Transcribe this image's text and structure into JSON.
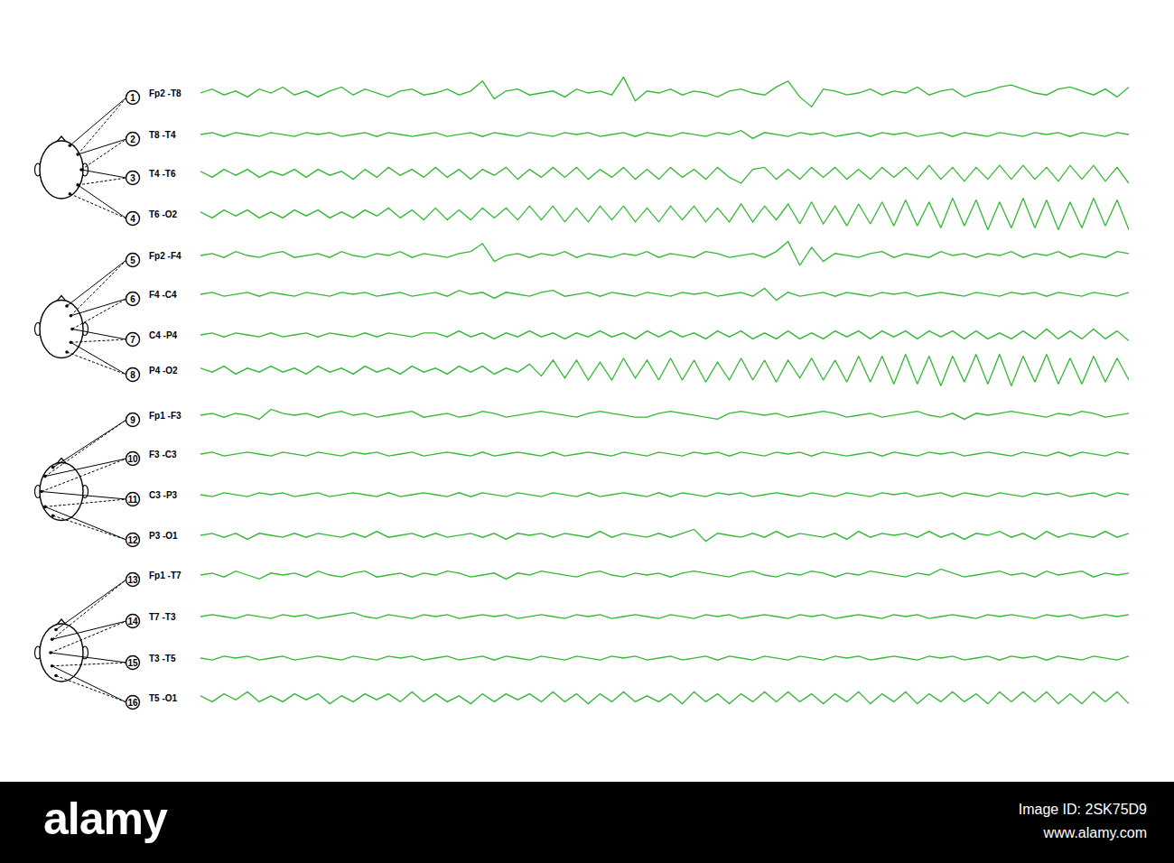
{
  "chart_data": {
    "type": "line",
    "color": "#33b833",
    "ylim": [
      -10,
      10
    ],
    "grid": false,
    "tick_labels": false,
    "series": [
      {
        "name": "Fp2 -T8",
        "number": 1,
        "values": [
          0,
          2,
          -1,
          1,
          -2,
          2,
          0,
          3,
          -1,
          1,
          -2,
          1,
          3,
          -1,
          2,
          0,
          -2,
          1,
          2,
          -1,
          0,
          2,
          -1,
          1,
          6,
          -3,
          1,
          2,
          -1,
          0,
          1,
          -2,
          2,
          0,
          1,
          -1,
          8,
          -4,
          1,
          0,
          2,
          -1,
          1,
          0,
          -2,
          1,
          2,
          0,
          -1,
          3,
          6,
          -2,
          -7,
          2,
          1,
          -1,
          0,
          2,
          -1,
          1,
          0,
          3,
          -1,
          1,
          2,
          -2,
          0,
          1,
          3,
          4,
          2,
          0,
          -1,
          2,
          3,
          1,
          -1,
          2,
          -2,
          3
        ]
      },
      {
        "name": "T8 -T4",
        "number": 2,
        "values": [
          0,
          1,
          -1,
          1,
          0,
          -1,
          1,
          0,
          -1,
          1,
          0,
          1,
          -1,
          0,
          1,
          -1,
          1,
          0,
          -1,
          0,
          1,
          -1,
          0,
          1,
          -1,
          1,
          0,
          -1,
          1,
          0,
          -1,
          1,
          0,
          1,
          -1,
          0,
          1,
          -1,
          1,
          0,
          -1,
          1,
          0,
          -1,
          1,
          0,
          2,
          -2,
          1,
          0,
          -1,
          1,
          0,
          1,
          -1,
          0,
          1,
          -1,
          1,
          0,
          1,
          -1,
          0,
          1,
          -1,
          1,
          0,
          -1,
          1,
          0,
          -1,
          1,
          0,
          1,
          -1,
          1,
          0,
          -1,
          1,
          0
        ]
      },
      {
        "name": "T4 -T6",
        "number": 3,
        "values": [
          1,
          -2,
          2,
          -1,
          2,
          -2,
          1,
          -1,
          2,
          -2,
          2,
          -1,
          1,
          -3,
          2,
          -2,
          3,
          -1,
          2,
          -2,
          3,
          -2,
          2,
          -3,
          2,
          -1,
          3,
          -3,
          2,
          -2,
          3,
          -2,
          3,
          -3,
          2,
          -2,
          3,
          -3,
          2,
          -3,
          3,
          -2,
          2,
          -3,
          3,
          -2,
          -5,
          2,
          3,
          -3,
          2,
          -3,
          3,
          -2,
          3,
          -3,
          2,
          -3,
          3,
          -2,
          3,
          -3,
          4,
          -3,
          3,
          -4,
          3,
          -3,
          4,
          -3,
          4,
          -3,
          3,
          -4,
          4,
          -3,
          4,
          -4,
          3,
          -5
        ]
      },
      {
        "name": "T6 -O2",
        "number": 4,
        "values": [
          1,
          -2,
          2,
          -1,
          2,
          -2,
          1,
          -2,
          2,
          -1,
          2,
          -2,
          1,
          -2,
          2,
          -1,
          3,
          -2,
          2,
          -3,
          3,
          -3,
          2,
          -3,
          3,
          -2,
          3,
          -3,
          4,
          -3,
          4,
          -4,
          3,
          -4,
          4,
          -3,
          4,
          -4,
          3,
          -4,
          4,
          -3,
          4,
          -4,
          3,
          -4,
          5,
          -4,
          4,
          -3,
          5,
          -5,
          6,
          -5,
          4,
          -6,
          5,
          -5,
          6,
          -6,
          7,
          -6,
          6,
          -7,
          8,
          -6,
          7,
          -8,
          6,
          -7,
          8,
          -7,
          7,
          -8,
          6,
          -7,
          8,
          -6,
          7,
          -8
        ]
      },
      {
        "name": "Fp2 -F4",
        "number": 5,
        "values": [
          0,
          1,
          -1,
          2,
          0,
          -1,
          1,
          2,
          -1,
          0,
          1,
          -1,
          2,
          0,
          -1,
          1,
          0,
          2,
          -1,
          1,
          0,
          -1,
          1,
          2,
          6,
          -3,
          0,
          1,
          -1,
          1,
          0,
          2,
          -1,
          1,
          0,
          -1,
          1,
          0,
          2,
          -1,
          1,
          0,
          -1,
          2,
          1,
          -1,
          0,
          1,
          -1,
          2,
          7,
          -5,
          4,
          -3,
          1,
          0,
          -1,
          1,
          2,
          -1,
          1,
          0,
          -1,
          2,
          0,
          1,
          -1,
          1,
          0,
          2,
          -1,
          1,
          0,
          2,
          -1,
          1,
          0,
          -1,
          2,
          1
        ]
      },
      {
        "name": "F4 -C4",
        "number": 6,
        "values": [
          0,
          1,
          -1,
          0,
          1,
          -1,
          1,
          0,
          -1,
          1,
          0,
          -1,
          1,
          0,
          1,
          -1,
          0,
          1,
          -1,
          0,
          1,
          -1,
          2,
          0,
          1,
          -2,
          1,
          0,
          -1,
          1,
          2,
          -1,
          0,
          1,
          -1,
          1,
          0,
          -1,
          1,
          0,
          -1,
          1,
          0,
          1,
          -1,
          0,
          1,
          -1,
          3,
          -3,
          1,
          -1,
          0,
          1,
          -1,
          1,
          0,
          -1,
          1,
          0,
          1,
          -1,
          0,
          1,
          0,
          -1,
          1,
          0,
          -1,
          1,
          0,
          1,
          -1,
          1,
          0,
          -1,
          1,
          0,
          -1,
          1
        ]
      },
      {
        "name": "C4 -P4",
        "number": 7,
        "values": [
          0,
          1,
          -1,
          1,
          0,
          -1,
          1,
          -1,
          0,
          1,
          -1,
          1,
          0,
          -1,
          1,
          -1,
          1,
          0,
          -1,
          1,
          1,
          -1,
          2,
          -1,
          1,
          -2,
          1,
          -1,
          2,
          -1,
          1,
          -2,
          1,
          -1,
          2,
          -1,
          1,
          -2,
          2,
          -1,
          2,
          -1,
          1,
          -2,
          2,
          -1,
          2,
          -2,
          1,
          -2,
          2,
          -2,
          1,
          -2,
          2,
          -1,
          2,
          -2,
          2,
          -1,
          2,
          -2,
          2,
          -1,
          2,
          -2,
          2,
          -2,
          1,
          -2,
          2,
          -2,
          3,
          -2,
          2,
          -2,
          3,
          -2,
          2,
          -3
        ]
      },
      {
        "name": "P4 -O2",
        "number": 8,
        "values": [
          1,
          -1,
          2,
          -2,
          1,
          -1,
          2,
          -1,
          1,
          -2,
          2,
          -1,
          1,
          -2,
          2,
          -1,
          1,
          -2,
          2,
          -1,
          1,
          -2,
          2,
          -1,
          2,
          -2,
          1,
          -1,
          3,
          -3,
          5,
          -4,
          5,
          -5,
          4,
          -5,
          6,
          -4,
          5,
          -5,
          6,
          -5,
          5,
          -6,
          4,
          -5,
          6,
          -5,
          5,
          -6,
          5,
          -4,
          6,
          -5,
          5,
          -6,
          7,
          -6,
          7,
          -7,
          8,
          -7,
          7,
          -8,
          7,
          -6,
          8,
          -7,
          8,
          -8,
          7,
          -6,
          8,
          -7,
          6,
          -7,
          7,
          -6,
          6,
          -5
        ]
      },
      {
        "name": "Fp1 -F3",
        "number": 9,
        "values": [
          0,
          1,
          -1,
          1,
          0,
          -2,
          3,
          1,
          0,
          1,
          -1,
          1,
          2,
          0,
          1,
          -1,
          0,
          1,
          2,
          -1,
          0,
          1,
          -1,
          0,
          2,
          1,
          -1,
          0,
          1,
          2,
          1,
          0,
          -1,
          1,
          2,
          1,
          0,
          -1,
          -1,
          1,
          2,
          1,
          0,
          -1,
          -2,
          1,
          2,
          1,
          0,
          1,
          -1,
          0,
          1,
          2,
          1,
          -1,
          0,
          1,
          -1,
          0,
          1,
          2,
          0,
          -1,
          1,
          -2,
          1,
          0,
          1,
          2,
          1,
          0,
          -1,
          1,
          0,
          2,
          1,
          -1,
          0,
          1
        ]
      },
      {
        "name": "F3 -C3",
        "number": 10,
        "values": [
          0,
          1,
          -1,
          0,
          1,
          0,
          -1,
          1,
          0,
          -1,
          1,
          0,
          -1,
          1,
          0,
          1,
          -1,
          0,
          1,
          -1,
          0,
          1,
          0,
          -1,
          1,
          -1,
          0,
          1,
          0,
          -1,
          1,
          -1,
          0,
          1,
          0,
          -1,
          1,
          0,
          -1,
          1,
          0,
          -1,
          1,
          0,
          1,
          -1,
          1,
          0,
          -1,
          1,
          0,
          1,
          -1,
          1,
          0,
          -1,
          0,
          1,
          -1,
          1,
          0,
          -1,
          1,
          0,
          1,
          -1,
          0,
          1,
          0,
          -1,
          1,
          0,
          -1,
          1,
          -1,
          1,
          0,
          -1,
          1,
          0
        ]
      },
      {
        "name": "C3 -P3",
        "number": 11,
        "values": [
          0,
          -1,
          1,
          0,
          -1,
          1,
          0,
          1,
          -1,
          0,
          1,
          -1,
          0,
          1,
          0,
          -1,
          1,
          -1,
          0,
          1,
          0,
          -1,
          1,
          -1,
          1,
          0,
          -1,
          1,
          0,
          -1,
          1,
          0,
          -1,
          1,
          -1,
          0,
          1,
          0,
          -1,
          1,
          -1,
          1,
          0,
          -1,
          1,
          0,
          1,
          -1,
          0,
          1,
          0,
          -1,
          1,
          0,
          -1,
          1,
          0,
          -1,
          1,
          0,
          1,
          -1,
          0,
          1,
          -1,
          1,
          0,
          -1,
          1,
          0,
          -1,
          1,
          0,
          1,
          -1,
          0,
          1,
          -1,
          1,
          0
        ]
      },
      {
        "name": "P3 -O1",
        "number": 12,
        "values": [
          0,
          1,
          -1,
          1,
          -2,
          1,
          0,
          -1,
          1,
          -1,
          1,
          0,
          -1,
          1,
          -1,
          2,
          -1,
          0,
          1,
          -1,
          1,
          -1,
          0,
          1,
          -1,
          1,
          -2,
          1,
          0,
          1,
          -1,
          1,
          0,
          -1,
          2,
          -1,
          1,
          0,
          -1,
          1,
          -1,
          1,
          3,
          -3,
          1,
          0,
          -1,
          1,
          -1,
          2,
          -1,
          1,
          0,
          -1,
          1,
          -2,
          2,
          -1,
          1,
          0,
          1,
          -1,
          2,
          -1,
          1,
          -2,
          1,
          0,
          2,
          -1,
          1,
          -2,
          2,
          -1,
          1,
          0,
          -1,
          2,
          -1,
          1
        ]
      },
      {
        "name": "Fp1 -T7",
        "number": 13,
        "values": [
          0,
          1,
          -1,
          2,
          0,
          -2,
          1,
          0,
          1,
          -1,
          2,
          0,
          -1,
          1,
          2,
          -1,
          0,
          1,
          -1,
          1,
          0,
          2,
          1,
          -1,
          0,
          1,
          -2,
          1,
          0,
          2,
          1,
          0,
          -1,
          1,
          2,
          0,
          -1,
          1,
          0,
          1,
          -1,
          1,
          2,
          1,
          0,
          -1,
          1,
          2,
          0,
          -1,
          1,
          0,
          2,
          1,
          -1,
          1,
          0,
          2,
          1,
          0,
          -1,
          1,
          0,
          3,
          1,
          -1,
          0,
          1,
          2,
          0,
          1,
          -1,
          2,
          0,
          1,
          2,
          -1,
          1,
          0,
          1
        ]
      },
      {
        "name": "T7 -T3",
        "number": 14,
        "values": [
          0,
          1,
          0,
          -1,
          1,
          0,
          -1,
          1,
          0,
          1,
          -1,
          0,
          1,
          2,
          0,
          -1,
          1,
          0,
          -1,
          1,
          0,
          1,
          -1,
          0,
          1,
          0,
          1,
          -1,
          0,
          1,
          0,
          -1,
          1,
          0,
          1,
          -1,
          0,
          1,
          0,
          -1,
          1,
          0,
          -1,
          1,
          0,
          1,
          -1,
          0,
          1,
          0,
          -1,
          1,
          0,
          1,
          -1,
          0,
          1,
          0,
          -1,
          1,
          0,
          1,
          -1,
          0,
          1,
          0,
          -1,
          1,
          0,
          1,
          0,
          -1,
          1,
          0,
          1,
          -1,
          0,
          1,
          0,
          1
        ]
      },
      {
        "name": "T3 -T5",
        "number": 15,
        "values": [
          0,
          -1,
          1,
          0,
          1,
          -1,
          0,
          1,
          -1,
          0,
          1,
          0,
          -1,
          1,
          0,
          -1,
          1,
          0,
          1,
          -1,
          0,
          1,
          -1,
          0,
          1,
          -1,
          1,
          0,
          -1,
          1,
          0,
          -1,
          1,
          0,
          -1,
          1,
          0,
          1,
          -1,
          0,
          1,
          -1,
          0,
          1,
          -1,
          1,
          0,
          -1,
          1,
          0,
          -1,
          1,
          0,
          -1,
          1,
          0,
          1,
          -1,
          0,
          1,
          0,
          -1,
          1,
          0,
          1,
          -1,
          0,
          1,
          -1,
          1,
          0,
          1,
          -1,
          1,
          0,
          -1,
          1,
          0,
          -1,
          1
        ]
      },
      {
        "name": "T5 -O1",
        "number": 16,
        "values": [
          1,
          -2,
          2,
          -1,
          3,
          -2,
          1,
          -2,
          2,
          -1,
          2,
          -3,
          1,
          -2,
          2,
          -1,
          2,
          -2,
          3,
          -2,
          2,
          -2,
          1,
          -3,
          2,
          -2,
          2,
          -1,
          2,
          -2,
          3,
          -2,
          2,
          -3,
          2,
          -2,
          3,
          -2,
          1,
          -2,
          2,
          -3,
          3,
          -2,
          2,
          -3,
          2,
          -2,
          3,
          -2,
          3,
          -2,
          2,
          -3,
          2,
          -2,
          3,
          -3,
          2,
          -2,
          3,
          -3,
          2,
          -2,
          3,
          -2,
          2,
          -3,
          3,
          -2,
          3,
          -2,
          3,
          -3,
          2,
          -3,
          3,
          -2,
          3,
          -3
        ]
      }
    ]
  },
  "watermark": {
    "logo": "alamy",
    "image_id": "Image ID: 2SK75D9",
    "url": "www.alamy.com"
  }
}
